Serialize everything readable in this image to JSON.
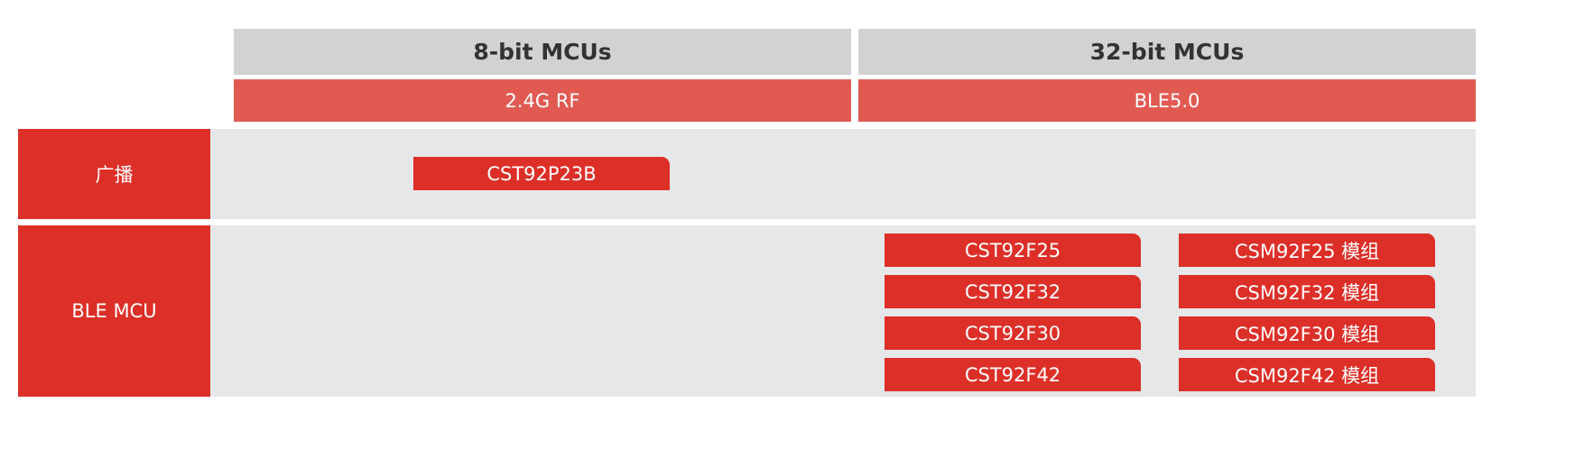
{
  "columns": [
    {
      "title": "8-bit MCUs",
      "subtitle": "2.4G RF"
    },
    {
      "title": "32-bit MCUs",
      "subtitle": "BLE5.0"
    }
  ],
  "rows": [
    {
      "label": "广播",
      "chips": [
        "CST92P23B"
      ]
    },
    {
      "label": "BLE MCU",
      "chips": [
        "CST92F25",
        "CSM92F25 模组",
        "CST92F32",
        "CSM92F32 模组",
        "CST92F30",
        "CSM92F30 模组",
        "CST92F42",
        "CSM92F42 模组"
      ]
    }
  ]
}
